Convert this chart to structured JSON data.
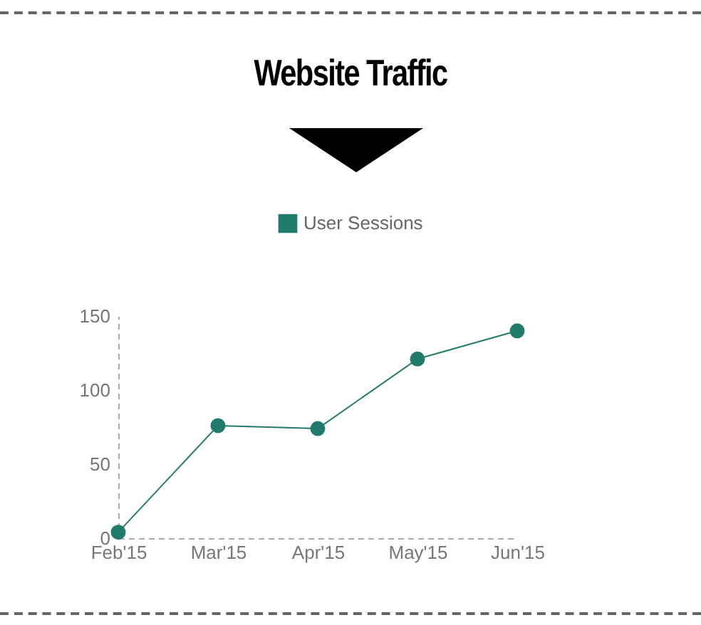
{
  "chart_data": {
    "type": "line",
    "title": "Website Traffic",
    "categories": [
      "Feb'15",
      "Mar'15",
      "Apr'15",
      "May'15",
      "Jun'15"
    ],
    "series": [
      {
        "name": "User Sessions",
        "color": "#217b6c",
        "values": [
          4,
          76,
          74,
          121,
          140
        ]
      }
    ],
    "ylim": [
      0,
      150
    ],
    "yticks": [
      0,
      50,
      100,
      150
    ],
    "grid": false,
    "legend": "top",
    "marker": "circle",
    "line_style": "solid"
  }
}
